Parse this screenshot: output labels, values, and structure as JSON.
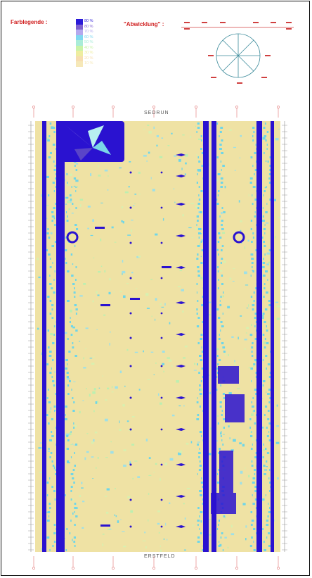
{
  "legend": {
    "title": "Farblegende :",
    "items": [
      {
        "label": "80 %",
        "color": "#2a1ad8"
      },
      {
        "label": "80 %",
        "color": "#7e60d0"
      },
      {
        "label": "70 %",
        "color": "#b4a8ee"
      },
      {
        "label": "60 %",
        "color": "#7fd8f0"
      },
      {
        "label": "50 %",
        "color": "#a9ecd8"
      },
      {
        "label": "40 %",
        "color": "#c9f3a8"
      },
      {
        "label": "30 %",
        "color": "#eeeda0"
      },
      {
        "label": "20 %",
        "color": "#f7ddb0"
      },
      {
        "label": "10 %",
        "color": "#f6e8b8"
      }
    ]
  },
  "abwicklung": {
    "title": "\"Abwicklung\" :"
  },
  "plan": {
    "top_label": "SEDRUN",
    "bottom_label": "ERSTFELD"
  },
  "colors": {
    "base": "#efe2a4",
    "dark": "#2a12d0",
    "cyan": "#6fd6e8",
    "green": "#bdefb0",
    "red": "#e04848"
  }
}
